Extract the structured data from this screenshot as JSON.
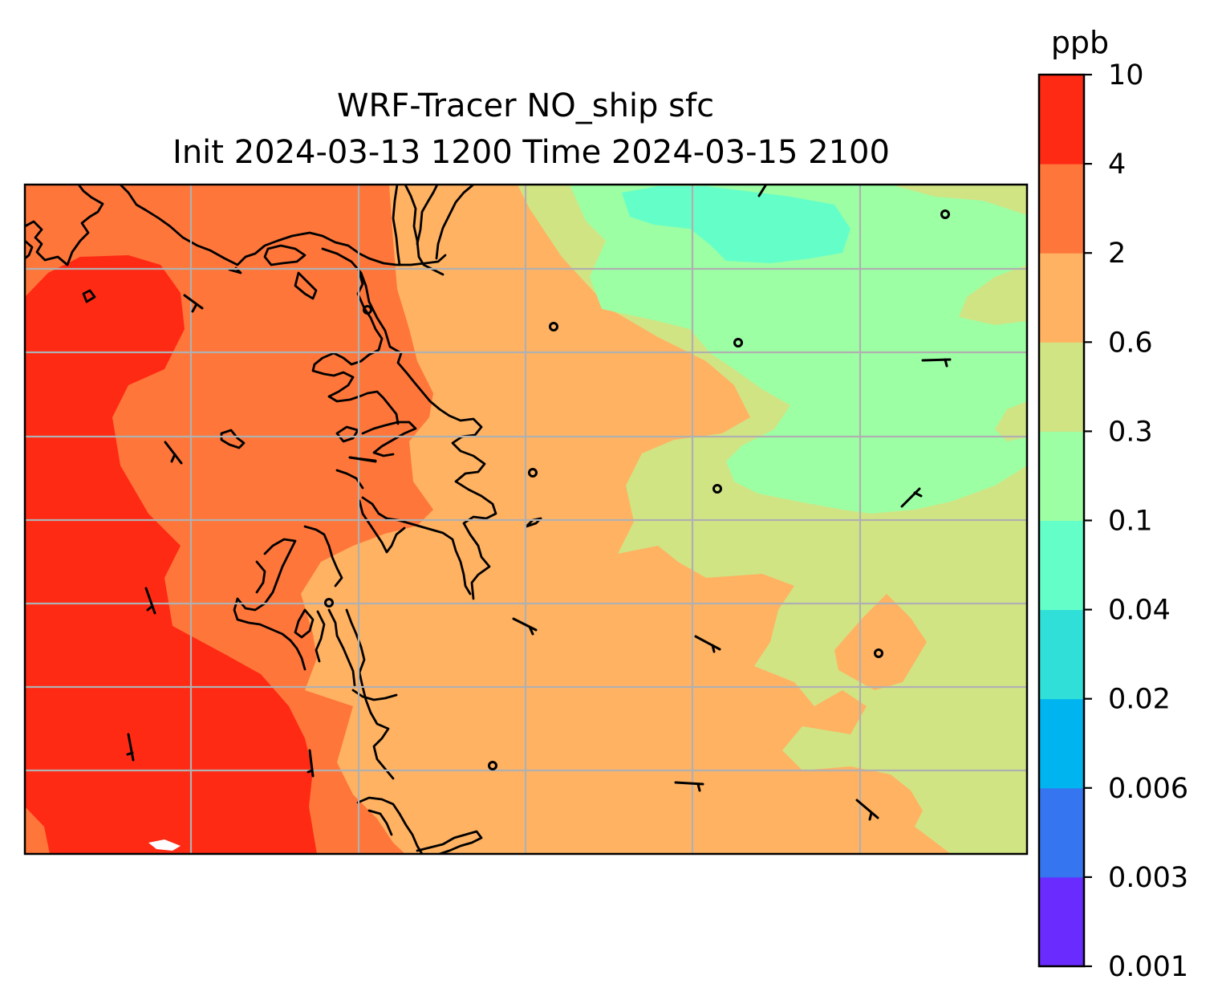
{
  "title": {
    "line1": "WRF-Tracer NO_ship sfc",
    "line2": "Init 2024-03-13 1200 Time 2024-03-15 2100"
  },
  "colorbar": {
    "unit": "ppb",
    "levels": [
      "0.001",
      "0.003",
      "0.006",
      "0.02",
      "0.04",
      "0.1",
      "0.3",
      "0.6",
      "2",
      "4",
      "10"
    ],
    "colors": [
      "#6a2bff",
      "#3575f0",
      "#00b4f0",
      "#30e0d8",
      "#64ffc8",
      "#9cffa4",
      "#d0e484",
      "#ffb262",
      "#ff763a",
      "#ff2a14"
    ]
  },
  "map_colors": {
    "band_over_4": "#ff2a14",
    "band_2_4": "#ff763a",
    "band_0_6_2": "#ffb262",
    "band_0_3_0_6": "#d0e484",
    "band_0_1_0_3": "#9cffa4",
    "band_0_04_0_1": "#64ffc8",
    "grid": "#b0b0b0",
    "coastline": "#000000"
  }
}
